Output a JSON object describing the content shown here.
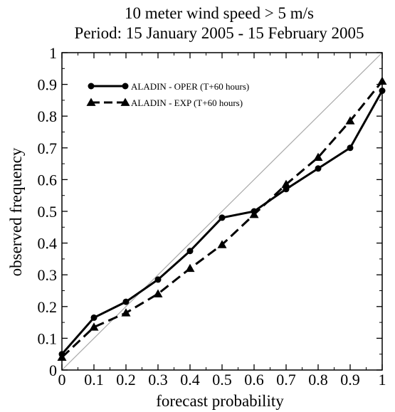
{
  "chart_data": {
    "type": "line",
    "title": "10 meter wind speed > 5 m/s",
    "subtitle": "Period: 15 January 2005 - 15 February 2005",
    "xlabel": "forecast probability",
    "ylabel": "observed frequency",
    "xlim": [
      0,
      1
    ],
    "ylim": [
      0,
      1
    ],
    "x_ticks": [
      "0",
      "0.1",
      "0.2",
      "0.3",
      "0.4",
      "0.5",
      "0.6",
      "0.7",
      "0.8",
      "0.9",
      "1"
    ],
    "y_ticks": [
      "0",
      "0.1",
      "0.2",
      "0.3",
      "0.4",
      "0.5",
      "0.6",
      "0.7",
      "0.8",
      "0.9",
      "1"
    ],
    "grid": false,
    "legend_position": "top-left",
    "reference_line": {
      "from": [
        0,
        0
      ],
      "to": [
        1,
        1
      ],
      "color": "#aaaaaa"
    },
    "series": [
      {
        "name": "ALADIN - OPER (T+60 hours)",
        "marker": "circle",
        "line_style": "solid",
        "color": "#000000",
        "x": [
          0,
          0.1,
          0.2,
          0.3,
          0.4,
          0.5,
          0.6,
          0.7,
          0.8,
          0.9,
          1
        ],
        "y": [
          0.05,
          0.165,
          0.215,
          0.285,
          0.375,
          0.48,
          0.5,
          0.57,
          0.635,
          0.7,
          0.88
        ]
      },
      {
        "name": "ALADIN - EXP (T+60 hours)",
        "marker": "triangle",
        "line_style": "dashed",
        "color": "#000000",
        "x": [
          0,
          0.1,
          0.2,
          0.3,
          0.4,
          0.5,
          0.6,
          0.7,
          0.8,
          0.9,
          1
        ],
        "y": [
          0.04,
          0.135,
          0.18,
          0.24,
          0.32,
          0.395,
          0.49,
          0.585,
          0.67,
          0.785,
          0.91
        ]
      }
    ]
  }
}
